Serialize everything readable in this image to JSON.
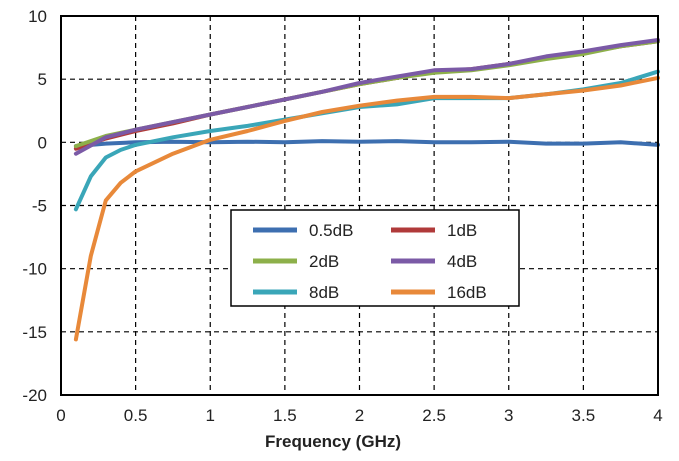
{
  "chart_data": {
    "type": "line",
    "title": "",
    "xlabel": "Frequency (GHz)",
    "ylabel": "",
    "xlim": [
      0,
      4
    ],
    "ylim": [
      -20,
      10
    ],
    "x_ticks": [
      0,
      0.5,
      1,
      1.5,
      2,
      2.5,
      3,
      3.5,
      4
    ],
    "x_tick_labels": [
      "0",
      "0.5",
      "1",
      "1.5",
      "2",
      "2.5",
      "3",
      "3.5",
      "4"
    ],
    "y_ticks": [
      10,
      5,
      0,
      -5,
      -10,
      -15,
      -20
    ],
    "y_tick_labels": [
      "10",
      "5",
      "0",
      "-5",
      "-10",
      "-15",
      "-20"
    ],
    "grid": true,
    "legend_position": "center-bottom",
    "series": [
      {
        "name": "0.5dB",
        "color": "#3d6fb0",
        "x": [
          0.1,
          0.3,
          0.5,
          0.75,
          1.0,
          1.25,
          1.5,
          1.75,
          2.0,
          2.25,
          2.5,
          2.75,
          3.0,
          3.25,
          3.5,
          3.75,
          4.0
        ],
        "y": [
          -0.3,
          -0.1,
          0.0,
          0.05,
          0.0,
          0.05,
          0.0,
          0.1,
          0.05,
          0.1,
          0.0,
          0.0,
          0.05,
          -0.1,
          -0.1,
          0.0,
          -0.2
        ]
      },
      {
        "name": "1dB",
        "color": "#b03a3a",
        "x": [
          0.1,
          0.3,
          0.5,
          0.75,
          1.0,
          1.25,
          1.5,
          1.75,
          2.0,
          2.25,
          2.5,
          2.75,
          3.0,
          3.25,
          3.5,
          3.75,
          4.0
        ],
        "y": [
          -0.5,
          0.3,
          0.9,
          1.5,
          2.2,
          2.8,
          3.4,
          4.0,
          4.6,
          5.1,
          5.6,
          5.8,
          6.2,
          6.7,
          7.1,
          7.6,
          8.0
        ]
      },
      {
        "name": "2dB",
        "color": "#8db04a",
        "x": [
          0.1,
          0.3,
          0.5,
          0.75,
          1.0,
          1.25,
          1.5,
          1.75,
          2.0,
          2.25,
          2.5,
          2.75,
          3.0,
          3.25,
          3.5,
          3.75,
          4.0
        ],
        "y": [
          -0.3,
          0.5,
          1.0,
          1.6,
          2.2,
          2.8,
          3.4,
          4.0,
          4.6,
          5.1,
          5.5,
          5.7,
          6.1,
          6.6,
          7.0,
          7.6,
          8.0
        ]
      },
      {
        "name": "4dB",
        "color": "#7b5aa6",
        "x": [
          0.1,
          0.3,
          0.5,
          0.75,
          1.0,
          1.25,
          1.5,
          1.75,
          2.0,
          2.25,
          2.5,
          2.75,
          3.0,
          3.25,
          3.5,
          3.75,
          4.0
        ],
        "y": [
          -0.9,
          0.4,
          1.0,
          1.6,
          2.2,
          2.8,
          3.4,
          4.0,
          4.7,
          5.2,
          5.7,
          5.8,
          6.2,
          6.8,
          7.2,
          7.7,
          8.1
        ]
      },
      {
        "name": "8dB",
        "color": "#3aa6b8",
        "x": [
          0.1,
          0.2,
          0.3,
          0.4,
          0.5,
          0.75,
          1.0,
          1.25,
          1.5,
          1.75,
          2.0,
          2.25,
          2.5,
          2.75,
          3.0,
          3.25,
          3.5,
          3.75,
          4.0
        ],
        "y": [
          -5.3,
          -2.7,
          -1.2,
          -0.6,
          -0.2,
          0.4,
          0.9,
          1.3,
          1.8,
          2.3,
          2.8,
          3.0,
          3.5,
          3.5,
          3.5,
          3.8,
          4.2,
          4.7,
          5.6
        ]
      },
      {
        "name": "16dB",
        "color": "#e8893a",
        "x": [
          0.1,
          0.2,
          0.3,
          0.4,
          0.5,
          0.75,
          1.0,
          1.25,
          1.5,
          1.75,
          2.0,
          2.25,
          2.5,
          2.75,
          3.0,
          3.25,
          3.5,
          3.75,
          4.0
        ],
        "y": [
          -15.6,
          -9.0,
          -4.6,
          -3.2,
          -2.3,
          -0.9,
          0.2,
          0.9,
          1.7,
          2.4,
          2.9,
          3.3,
          3.6,
          3.6,
          3.5,
          3.8,
          4.1,
          4.5,
          5.1
        ]
      }
    ]
  }
}
